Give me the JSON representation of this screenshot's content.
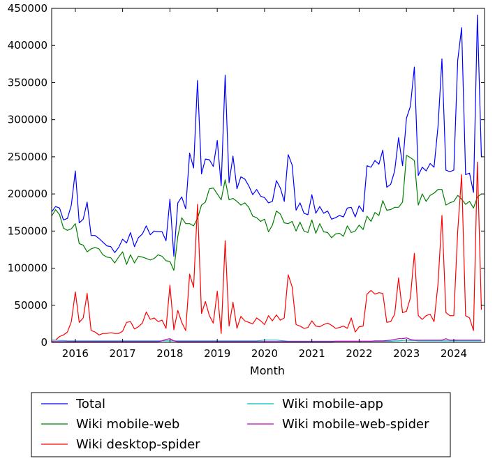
{
  "chart_data": {
    "type": "line",
    "xlabel": "Month",
    "ylabel": "",
    "xlim": [
      2015.5,
      2024.65
    ],
    "ylim": [
      0,
      450000
    ],
    "xticks": [
      2016,
      2017,
      2018,
      2019,
      2020,
      2021,
      2022,
      2023,
      2024
    ],
    "xtick_labels": [
      "2016",
      "2017",
      "2018",
      "2019",
      "2020",
      "2021",
      "2022",
      "2023",
      "2024"
    ],
    "yticks": [
      0,
      50000,
      100000,
      150000,
      200000,
      250000,
      300000,
      350000,
      400000,
      450000
    ],
    "ytick_labels": [
      "0",
      "50000",
      "100000",
      "150000",
      "200000",
      "250000",
      "300000",
      "350000",
      "400000",
      "450000"
    ],
    "x_start": 2015.5,
    "x_step_months": 1,
    "legend": {
      "placement": "below",
      "columns": 2
    },
    "series": [
      {
        "name": "Total",
        "color": "#0000ff",
        "values": [
          176000,
          183000,
          181000,
          165000,
          167000,
          185000,
          231000,
          161000,
          166000,
          189000,
          144000,
          144000,
          140000,
          135000,
          130000,
          129000,
          121000,
          128000,
          139000,
          134000,
          148000,
          129000,
          141000,
          146000,
          157000,
          145000,
          150000,
          149000,
          149000,
          137000,
          193000,
          116000,
          188000,
          196000,
          180000,
          255000,
          235000,
          353000,
          227000,
          247000,
          246000,
          237000,
          272000,
          211000,
          360000,
          215000,
          251000,
          207000,
          223000,
          220000,
          211000,
          199000,
          206000,
          197000,
          195000,
          188000,
          190000,
          218000,
          208000,
          190000,
          253000,
          239000,
          178000,
          188000,
          174000,
          172000,
          199000,
          174000,
          183000,
          174000,
          177000,
          166000,
          168000,
          171000,
          169000,
          181000,
          182000,
          169000,
          184000,
          176000,
          238000,
          236000,
          245000,
          240000,
          259000,
          209000,
          213000,
          231000,
          276000,
          238000,
          302000,
          318000,
          371000,
          225000,
          236000,
          231000,
          241000,
          236000,
          291000,
          382000,
          232000,
          230000,
          232000,
          380000,
          424000,
          226000,
          228000,
          202000,
          441000,
          250000
        ]
      },
      {
        "name": "Wiki mobile-web",
        "color": "#008000",
        "values": [
          170000,
          179000,
          172000,
          154000,
          151000,
          153000,
          160000,
          133000,
          131000,
          122000,
          126000,
          128000,
          126000,
          118000,
          115000,
          114000,
          107000,
          115000,
          122000,
          105000,
          118000,
          107000,
          116000,
          115000,
          113000,
          111000,
          113000,
          118000,
          116000,
          110000,
          109000,
          97000,
          143000,
          168000,
          160000,
          160000,
          157000,
          167000,
          185000,
          189000,
          207000,
          208000,
          200000,
          192000,
          219000,
          192000,
          194000,
          190000,
          185000,
          188000,
          182000,
          170000,
          168000,
          163000,
          166000,
          149000,
          158000,
          177000,
          173000,
          161000,
          160000,
          163000,
          150000,
          162000,
          150000,
          148000,
          165000,
          147000,
          160000,
          149000,
          148000,
          141000,
          146000,
          147000,
          143000,
          157000,
          148000,
          150000,
          158000,
          152000,
          170000,
          163000,
          175000,
          171000,
          191000,
          178000,
          179000,
          182000,
          182000,
          189000,
          252000,
          249000,
          245000,
          185000,
          200000,
          190000,
          198000,
          201000,
          206000,
          206000,
          185000,
          188000,
          190000,
          198000,
          193000,
          186000,
          190000,
          181000,
          196000,
          200000
        ]
      },
      {
        "name": "Wiki desktop-spider",
        "color": "#ff0000",
        "values": [
          3000,
          3000,
          8000,
          10000,
          14000,
          28000,
          68000,
          27000,
          33000,
          66000,
          16000,
          14000,
          10000,
          12000,
          12000,
          13000,
          12000,
          12000,
          15000,
          27000,
          28000,
          18000,
          21000,
          26000,
          41000,
          31000,
          33000,
          28000,
          30000,
          19000,
          77000,
          17000,
          43000,
          27000,
          16000,
          92000,
          74000,
          186000,
          39000,
          55000,
          36000,
          26000,
          69000,
          12000,
          137000,
          22000,
          54000,
          19000,
          35000,
          29000,
          27000,
          25000,
          33000,
          29000,
          24000,
          36000,
          29000,
          37000,
          30000,
          33000,
          91000,
          75000,
          24000,
          22000,
          19000,
          20000,
          29000,
          22000,
          21000,
          24000,
          26000,
          23000,
          19000,
          20000,
          22000,
          19000,
          33000,
          14000,
          21000,
          22000,
          65000,
          70000,
          65000,
          67000,
          66000,
          27000,
          28000,
          38000,
          87000,
          40000,
          42000,
          60000,
          120000,
          36000,
          31000,
          36000,
          38000,
          28000,
          79000,
          171000,
          40000,
          36000,
          36000,
          150000,
          226000,
          36000,
          33000,
          16000,
          243000,
          44000
        ]
      },
      {
        "name": "Wiki mobile-app",
        "color": "#00bfbf",
        "values": [
          3000,
          3000,
          2500,
          2500,
          2000,
          2000,
          2000,
          2000,
          2000,
          2000,
          2000,
          2000,
          2000,
          2000,
          2000,
          2000,
          2000,
          2000,
          2000,
          2000,
          2000,
          2000,
          2000,
          2000,
          2000,
          2000,
          2000,
          2000,
          2000,
          2000,
          2000,
          2000,
          2000,
          2000,
          2000,
          2000,
          2000,
          2000,
          2000,
          2000,
          2000,
          2000,
          2000,
          2000,
          2000,
          2000,
          2000,
          2000,
          2000,
          2000,
          2000,
          2000,
          2000,
          2500,
          3000,
          3000,
          3000,
          3000,
          2500,
          2000,
          1500,
          1500,
          1500,
          1500,
          1500,
          1500,
          1500,
          1500,
          1500,
          1500,
          1500,
          1500,
          1500,
          1500,
          1500,
          1500,
          1500,
          1500,
          1500,
          1500,
          1500,
          1500,
          1500,
          1500,
          1500,
          1500,
          1500,
          2000,
          2000,
          2500,
          3000,
          2500,
          2500,
          2000,
          2000,
          2000,
          2000,
          2000,
          2000,
          2000,
          2000,
          2000,
          2000,
          2000,
          2000,
          2000,
          2000,
          2000,
          2000,
          2000
        ]
      },
      {
        "name": "Wiki mobile-web-spider",
        "color": "#bf00bf",
        "values": [
          1000,
          1000,
          1000,
          1000,
          1000,
          1000,
          1000,
          1000,
          1000,
          1000,
          1000,
          1000,
          1000,
          1000,
          1000,
          1000,
          1000,
          1000,
          1000,
          1000,
          1000,
          1000,
          1000,
          1000,
          1000,
          1000,
          1000,
          1000,
          2000,
          4000,
          5000,
          2000,
          1000,
          1000,
          1000,
          1000,
          1000,
          1000,
          1000,
          1000,
          1000,
          1000,
          1000,
          1000,
          1000,
          1000,
          1000,
          1000,
          1000,
          1000,
          1000,
          1000,
          1000,
          1000,
          1000,
          1000,
          1000,
          1000,
          1000,
          1000,
          1000,
          1000,
          1000,
          1000,
          1000,
          1000,
          1000,
          1000,
          1000,
          1000,
          1000,
          1000,
          1500,
          1500,
          1500,
          1500,
          1500,
          1500,
          1500,
          1500,
          1500,
          1500,
          2000,
          2000,
          2000,
          2500,
          3000,
          4000,
          5000,
          5000,
          6000,
          4000,
          3000,
          3000,
          3000,
          3000,
          3000,
          3000,
          3000,
          3000,
          5000,
          3000,
          3000,
          3000,
          3000,
          3000,
          3000,
          3000,
          3000,
          3000
        ]
      }
    ]
  }
}
